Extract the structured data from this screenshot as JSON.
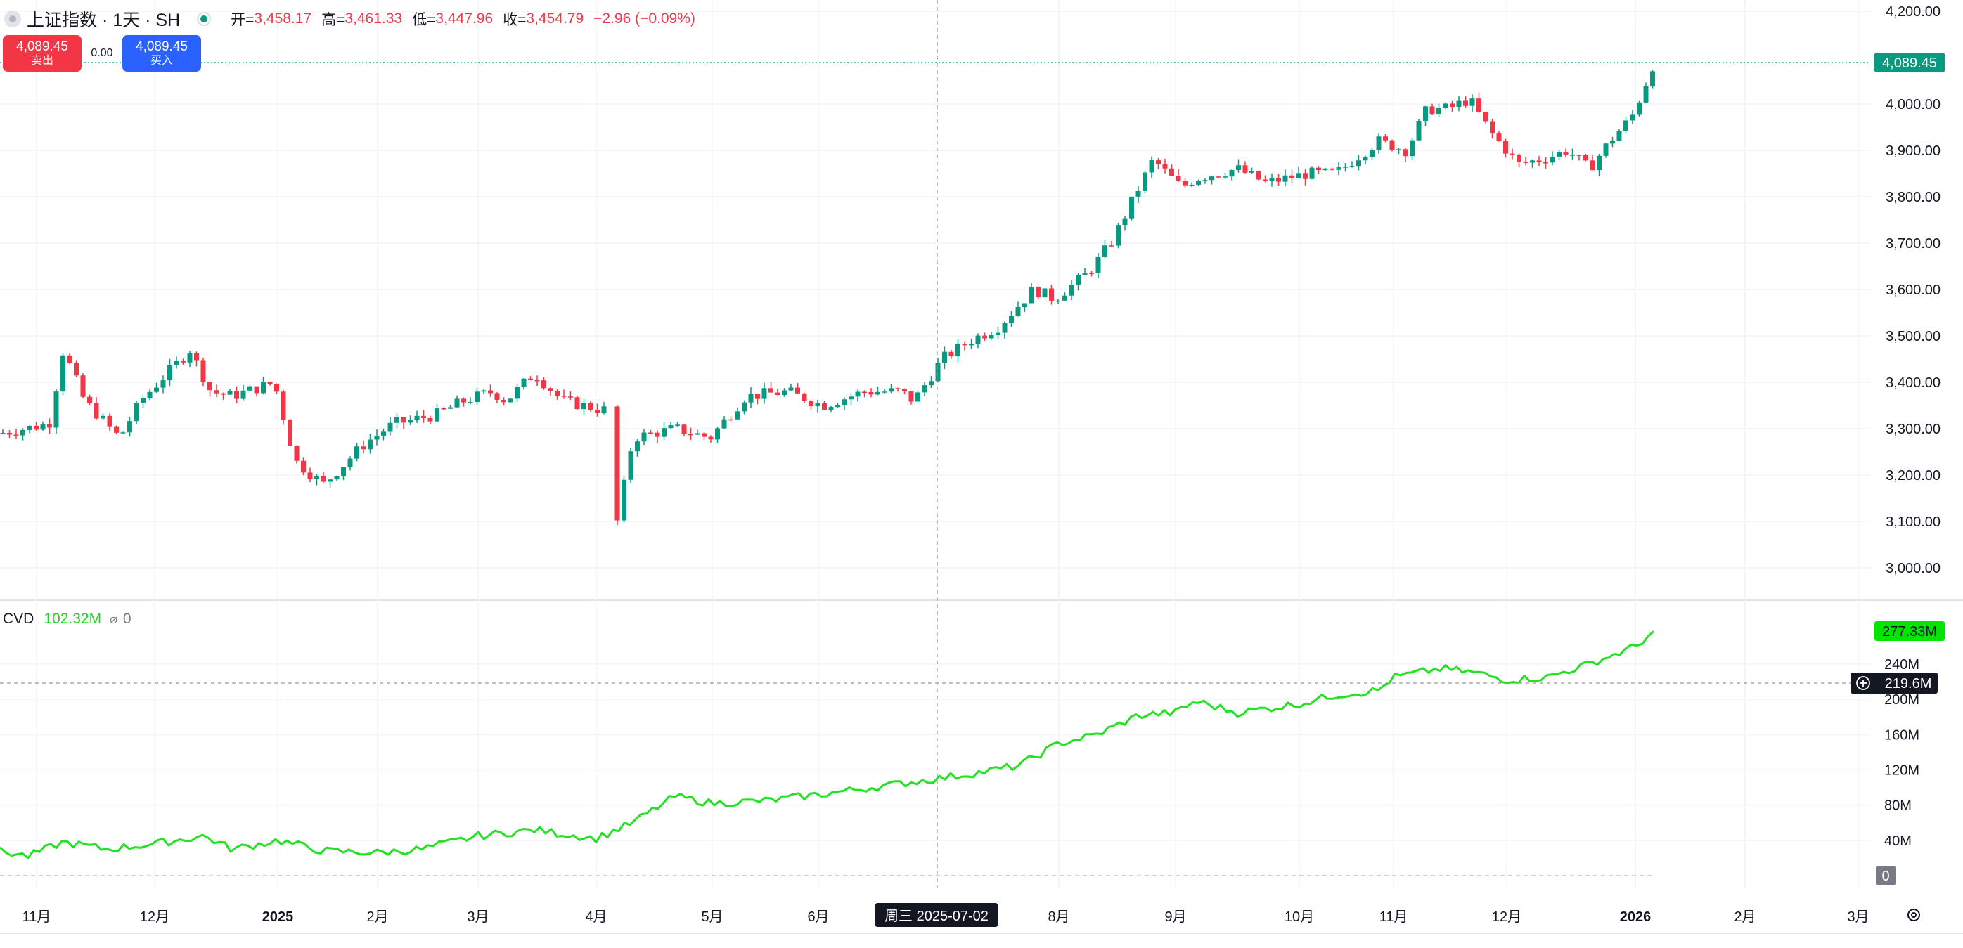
{
  "header": {
    "symbol_title": "上证指数 · 1天 · SH",
    "ohlc": [
      {
        "label": "开=",
        "value": "3,458.17"
      },
      {
        "label": "高=",
        "value": "3,461.33"
      },
      {
        "label": "低=",
        "value": "3,447.96"
      },
      {
        "label": "收=",
        "value": "3,454.79"
      }
    ],
    "change": "−2.96 (−0.09%)"
  },
  "trade": {
    "sell_price": "4,089.45",
    "sell_label": "卖出",
    "spread": "0.00",
    "buy_price": "4,089.45",
    "buy_label": "买入"
  },
  "cvd_legend": {
    "name": "CVD",
    "value": "102.32M",
    "icon": "circle-slash-icon",
    "zero": "0"
  },
  "crosshair": {
    "date_label": "周三 2025-07-02",
    "cvd_value": "219.6M"
  },
  "price_axis": {
    "ticks": [
      "4,200.00",
      "4,000.00",
      "3,900.00",
      "3,800.00",
      "3,700.00",
      "3,600.00",
      "3,500.00",
      "3,400.00",
      "3,300.00",
      "3,200.00",
      "3,100.00",
      "3,000.00"
    ],
    "last_price": "4,089.45"
  },
  "cvd_axis": {
    "ticks": [
      "240M",
      "200M",
      "160M",
      "120M",
      "80M",
      "40M"
    ],
    "last_value": "277.33M",
    "zero_label": "0"
  },
  "time_axis": {
    "ticks": [
      {
        "label": "11月",
        "bold": false
      },
      {
        "label": "12月",
        "bold": false
      },
      {
        "label": "2025",
        "bold": true
      },
      {
        "label": "2月",
        "bold": false
      },
      {
        "label": "3月",
        "bold": false
      },
      {
        "label": "4月",
        "bold": false
      },
      {
        "label": "5月",
        "bold": false
      },
      {
        "label": "6月",
        "bold": false
      },
      {
        "label": "8月",
        "bold": false
      },
      {
        "label": "9月",
        "bold": false
      },
      {
        "label": "10月",
        "bold": false
      },
      {
        "label": "11月",
        "bold": false
      },
      {
        "label": "12月",
        "bold": false
      },
      {
        "label": "2026",
        "bold": true
      },
      {
        "label": "2月",
        "bold": false
      },
      {
        "label": "3月",
        "bold": false
      }
    ]
  },
  "colors": {
    "up": "#089981",
    "down": "#f23645",
    "cvd_line": "#22e222",
    "cvd_badge": "#00e600",
    "sell": "#f23645",
    "buy": "#2962ff"
  },
  "chart_data": [
    {
      "type": "candlestick",
      "title": "上证指数 · 1天 · SH",
      "ylim": [
        2950,
        4220
      ],
      "y_ticks": [
        3000,
        3100,
        3200,
        3300,
        3400,
        3500,
        3600,
        3700,
        3800,
        3900,
        4000,
        4200
      ],
      "last_price": 4089.45,
      "x_ticks": [
        "11月",
        "12月",
        "2025",
        "2月",
        "3月",
        "4月",
        "5月",
        "6月",
        "8月",
        "9月",
        "10月",
        "11月",
        "12月",
        "2026",
        "2月",
        "3月"
      ],
      "series": [
        {
          "name": "monthly_closes_approx",
          "x": [
            "2024-11",
            "2024-12",
            "2025-01",
            "2025-02",
            "2025-03",
            "2025-04",
            "2025-05",
            "2025-06",
            "2025-07",
            "2025-08",
            "2025-09",
            "2025-10",
            "2025-11",
            "2025-12",
            "2026-01"
          ],
          "values": [
            3330,
            3370,
            3250,
            3320,
            3370,
            3280,
            3350,
            3440,
            3580,
            3860,
            3840,
            3950,
            3870,
            3920,
            4089
          ]
        }
      ]
    },
    {
      "type": "line",
      "series_label": "CVD",
      "ylim": [
        0,
        290
      ],
      "y_ticks": [
        0,
        40,
        80,
        120,
        160,
        200,
        240
      ],
      "last_value": 277.33,
      "series": [
        {
          "name": "cvd_monthly_approx",
          "x": [
            "2024-11",
            "2024-12",
            "2025-01",
            "2025-02",
            "2025-03",
            "2025-04",
            "2025-05",
            "2025-06",
            "2025-07",
            "2025-08",
            "2025-09",
            "2025-10",
            "2025-11",
            "2025-12",
            "2026-01"
          ],
          "values": [
            32,
            38,
            25,
            30,
            55,
            55,
            80,
            90,
            110,
            150,
            185,
            205,
            230,
            225,
            277
          ]
        }
      ]
    }
  ]
}
